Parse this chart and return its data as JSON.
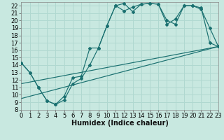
{
  "xlabel": "Humidex (Indice chaleur)",
  "xlim": [
    0,
    23
  ],
  "ylim": [
    8,
    22.5
  ],
  "yticks": [
    8,
    9,
    10,
    11,
    12,
    13,
    14,
    15,
    16,
    17,
    18,
    19,
    20,
    21,
    22
  ],
  "xticks": [
    0,
    1,
    2,
    3,
    4,
    5,
    6,
    7,
    8,
    9,
    10,
    11,
    12,
    13,
    14,
    15,
    16,
    17,
    18,
    19,
    20,
    21,
    22,
    23
  ],
  "bg_color": "#c8e8e0",
  "line_color": "#1a7070",
  "grid_color": "#b0d8d0",
  "line1_x": [
    0,
    1,
    2,
    3,
    4,
    5,
    6,
    7,
    8,
    9,
    10,
    11,
    12,
    13,
    14,
    15,
    16,
    17,
    18,
    19,
    20,
    21,
    22,
    23
  ],
  "line1_y": [
    14.3,
    13.0,
    11.0,
    9.2,
    8.7,
    9.3,
    11.5,
    12.2,
    14.0,
    16.3,
    19.3,
    22.0,
    22.3,
    21.2,
    22.2,
    22.3,
    22.2,
    19.5,
    20.2,
    22.0,
    22.0,
    21.5,
    19.0,
    16.5
  ],
  "line2_x": [
    0,
    1,
    2,
    3,
    4,
    5,
    6,
    7,
    8,
    9,
    10,
    11,
    12,
    13,
    14,
    15,
    16,
    17,
    18,
    19,
    20,
    21,
    22,
    23
  ],
  "line2_y": [
    14.3,
    13.0,
    11.0,
    9.2,
    8.7,
    9.8,
    12.3,
    12.5,
    16.3,
    16.3,
    19.3,
    22.0,
    21.3,
    21.8,
    22.2,
    22.3,
    22.2,
    20.0,
    19.5,
    22.0,
    22.0,
    21.7,
    17.0,
    16.5
  ],
  "line3_x": [
    0,
    23
  ],
  "line3_y": [
    9.5,
    16.5
  ],
  "line4_x": [
    0,
    23
  ],
  "line4_y": [
    11.5,
    16.5
  ],
  "font_size": 6
}
